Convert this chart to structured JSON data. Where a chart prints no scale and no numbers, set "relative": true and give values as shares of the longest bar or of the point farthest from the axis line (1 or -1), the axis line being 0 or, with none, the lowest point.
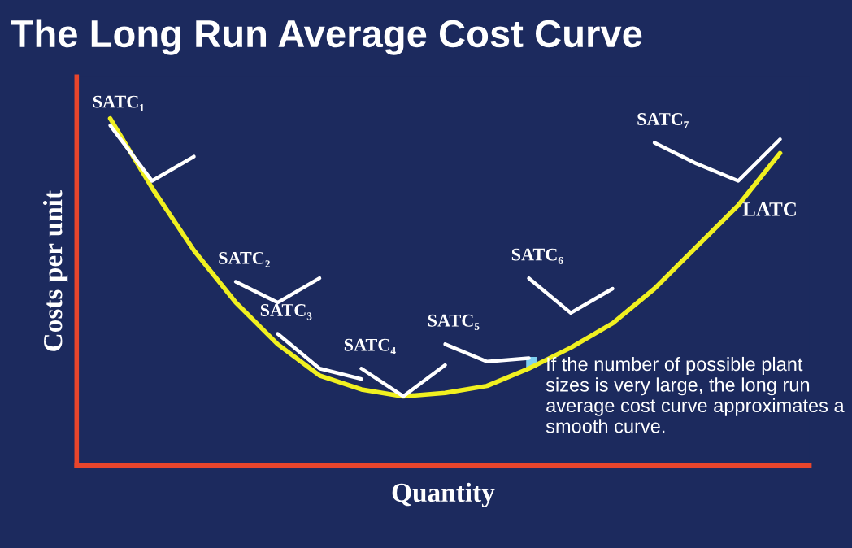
{
  "chart_data": {
    "type": "line",
    "title": "The Long Run Average Cost Curve",
    "xlabel": "Quantity",
    "ylabel": "Costs per unit",
    "relative": true,
    "grid": false,
    "legend": false,
    "marker": "none",
    "line_style": "solid",
    "categories": [
      null,
      null,
      null,
      null,
      null,
      null,
      null,
      null,
      null,
      null,
      null,
      null,
      null,
      null,
      null,
      null,
      null
    ],
    "series": [
      {
        "name": "LATC",
        "color": "#f0f020",
        "values": [
          1.0,
          0.8,
          0.62,
          0.47,
          0.35,
          0.26,
          0.22,
          0.2,
          0.21,
          0.23,
          0.28,
          0.34,
          0.41,
          0.51,
          0.63,
          0.75,
          0.9
        ]
      },
      {
        "name": "SATC₁",
        "color": "#ffffff",
        "values": [
          0.98,
          0.82,
          0.89,
          null,
          null,
          null,
          null,
          null,
          null,
          null,
          null,
          null,
          null,
          null,
          null,
          null,
          null
        ]
      },
      {
        "name": "SATC₂",
        "color": "#ffffff",
        "values": [
          null,
          null,
          null,
          0.53,
          0.47,
          0.54,
          null,
          null,
          null,
          null,
          null,
          null,
          null,
          null,
          null,
          null,
          null
        ]
      },
      {
        "name": "SATC₃",
        "color": "#ffffff",
        "values": [
          null,
          null,
          null,
          null,
          0.38,
          0.28,
          0.25,
          null,
          null,
          null,
          null,
          null,
          null,
          null,
          null,
          null,
          null
        ]
      },
      {
        "name": "SATC₄",
        "color": "#ffffff",
        "values": [
          null,
          null,
          null,
          null,
          null,
          null,
          0.28,
          0.2,
          0.29,
          null,
          null,
          null,
          null,
          null,
          null,
          null,
          null
        ]
      },
      {
        "name": "SATC₅",
        "color": "#ffffff",
        "values": [
          null,
          null,
          null,
          null,
          null,
          null,
          null,
          null,
          0.35,
          0.3,
          0.31,
          null,
          null,
          null,
          null,
          null,
          null
        ]
      },
      {
        "name": "SATC₆",
        "color": "#ffffff",
        "values": [
          null,
          null,
          null,
          null,
          null,
          null,
          null,
          null,
          null,
          null,
          0.54,
          0.44,
          0.51,
          null,
          null,
          null,
          null
        ]
      },
      {
        "name": "SATC₇",
        "color": "#ffffff",
        "values": [
          null,
          null,
          null,
          null,
          null,
          null,
          null,
          null,
          null,
          null,
          null,
          null,
          null,
          0.93,
          0.87,
          0.82,
          0.94
        ]
      }
    ],
    "annotations": [
      "If the number of possible plant sizes is very large, the long run average cost curve approximates a smooth curve."
    ]
  }
}
